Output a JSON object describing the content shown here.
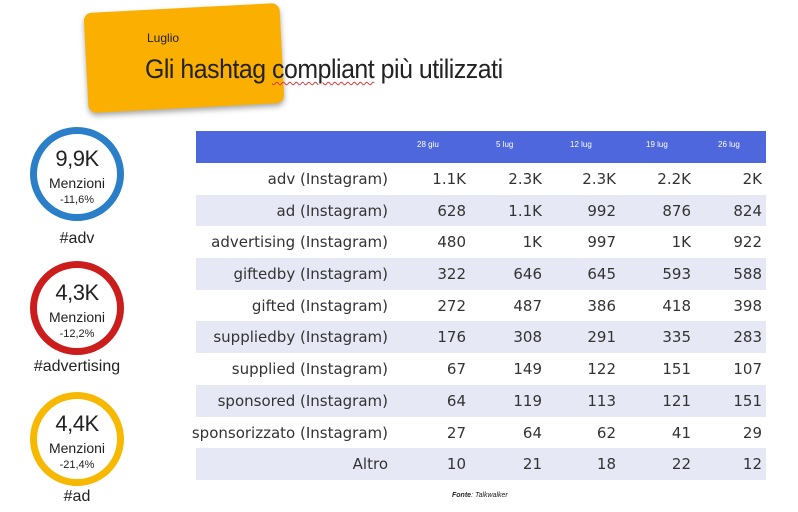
{
  "header": {
    "subtitle": "Luglio",
    "title_part1": "Gli hashtag ",
    "title_part2": "compliant",
    "title_part3": " più utilizzati"
  },
  "stats": [
    {
      "value": "9,9K",
      "label": "Menzioni",
      "change": "-11,6%",
      "hashtag": "#adv",
      "color": "#2a7fc8"
    },
    {
      "value": "4,3K",
      "label": "Menzioni",
      "change": "-12,2%",
      "hashtag": "#advertising",
      "color": "#cc1d1d"
    },
    {
      "value": "4,4K",
      "label": "Menzioni",
      "change": "-21,4%",
      "hashtag": "#ad",
      "color": "#f6b800"
    }
  ],
  "table": {
    "header_bg": "#4f67dd",
    "columns": [
      "28 giu",
      "5 lug",
      "12 lug",
      "19 lug",
      "26 lug"
    ],
    "rows": [
      {
        "name": "adv (Instagram)",
        "values": [
          "1.1K",
          "2.3K",
          "2.3K",
          "2.2K",
          "2K"
        ]
      },
      {
        "name": "ad (Instagram)",
        "values": [
          "628",
          "1.1K",
          "992",
          "876",
          "824"
        ]
      },
      {
        "name": "advertising (Instagram)",
        "values": [
          "480",
          "1K",
          "997",
          "1K",
          "922"
        ]
      },
      {
        "name": "giftedby (Instagram)",
        "values": [
          "322",
          "646",
          "645",
          "593",
          "588"
        ]
      },
      {
        "name": "gifted (Instagram)",
        "values": [
          "272",
          "487",
          "386",
          "418",
          "398"
        ]
      },
      {
        "name": "suppliedby (Instagram)",
        "values": [
          "176",
          "308",
          "291",
          "335",
          "283"
        ]
      },
      {
        "name": "supplied (Instagram)",
        "values": [
          "67",
          "149",
          "122",
          "151",
          "107"
        ]
      },
      {
        "name": "sponsored (Instagram)",
        "values": [
          "64",
          "119",
          "113",
          "121",
          "151"
        ]
      },
      {
        "name": "sponsorizzato (Instagram)",
        "values": [
          "27",
          "64",
          "62",
          "41",
          "29"
        ]
      },
      {
        "name": "Altro",
        "values": [
          "10",
          "21",
          "18",
          "22",
          "12"
        ]
      }
    ]
  },
  "source": {
    "label": "Fonte",
    "text": ": Talkwalker"
  }
}
